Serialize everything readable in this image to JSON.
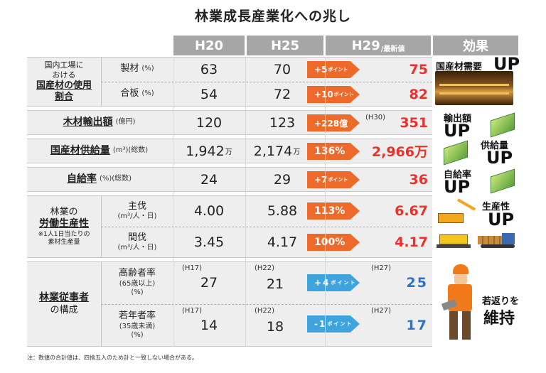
{
  "title": "林業成長産業化への兆し",
  "header": {
    "h20": "H20",
    "h25": "H25",
    "h29": "H29",
    "h29_small": "/最新値",
    "effect": "効果"
  },
  "rows": {
    "domestic": {
      "label1": "国内工場に",
      "label2": "おける",
      "label3": "国産材の使用",
      "label4": "割合",
      "lumber": {
        "name": "製材",
        "unit": "(%)",
        "h20": "63",
        "h25": "70",
        "change": "+5",
        "change_unit": "ポイント",
        "latest": "75"
      },
      "plywood": {
        "name": "合板",
        "unit": "(%)",
        "h20": "54",
        "h25": "72",
        "change": "+10",
        "change_unit": "ポイント",
        "latest": "82"
      }
    },
    "export": {
      "name": "木材輸出額",
      "unit": "(億円)",
      "h20": "120",
      "h25": "123",
      "change": "+228億",
      "note": "(H30)",
      "latest": "351"
    },
    "supply": {
      "name": "国産材供給量",
      "unit": "(m³)(総数)",
      "h20": "1,942",
      "h20_u": "万",
      "h25": "2,174",
      "h25_u": "万",
      "change": "136%",
      "latest": "2,966万"
    },
    "selfsuff": {
      "name": "自給率",
      "unit": "(%)(総数)",
      "h20": "24",
      "h25": "29",
      "change": "+7",
      "change_unit": "ポイント",
      "latest": "36"
    },
    "productivity": {
      "label1": "林業の",
      "label2": "労働生産性",
      "label3": "※1人1日当たりの",
      "label4": "素材生産量",
      "main": {
        "name": "主伐",
        "unit": "(m³/人・日)",
        "h20": "4.00",
        "h25": "5.88",
        "change": "113%",
        "latest": "6.67"
      },
      "thin": {
        "name": "間伐",
        "unit": "(m³/人・日)",
        "h20": "3.45",
        "h25": "4.17",
        "change": "100%",
        "latest": "4.17"
      }
    },
    "workers": {
      "label1": "林業従事者",
      "label2": "の構成",
      "elder": {
        "name": "高齢者率",
        "sub1": "(65歳以上)",
        "sub2": "(%)",
        "y1": "(H17)",
        "h20": "27",
        "y2": "(H22)",
        "h25": "21",
        "change": "+4",
        "change_unit": "ポイント",
        "y3": "(H27)",
        "latest": "25"
      },
      "young": {
        "name": "若年者率",
        "sub1": "(35歳未満)",
        "sub2": "(%)",
        "y1": "(H17)",
        "h20": "14",
        "y2": "(H22)",
        "h25": "18",
        "change": "-1",
        "change_unit": "ポイント",
        "y3": "(H27)",
        "latest": "17"
      }
    }
  },
  "effects": {
    "demand": "国産材需要",
    "demand_up": "UP",
    "export": "輸出額",
    "export_up": "UP",
    "supply": "供給量",
    "supply_up": "UP",
    "selfsuff": "自給率",
    "selfsuff_up": "UP",
    "productivity": "生産性",
    "productivity_up": "UP",
    "young1": "若返りを",
    "young2": "維持"
  },
  "footnote": "注：数値の合計値は、四捨五入のため計と一致しない場合がある。",
  "colors": {
    "header": "#a6a6a6",
    "arrow_orange": "#ee6a2a",
    "arrow_blue": "#3fa4dd",
    "red": "#e8322a",
    "blue": "#2a73c8"
  }
}
